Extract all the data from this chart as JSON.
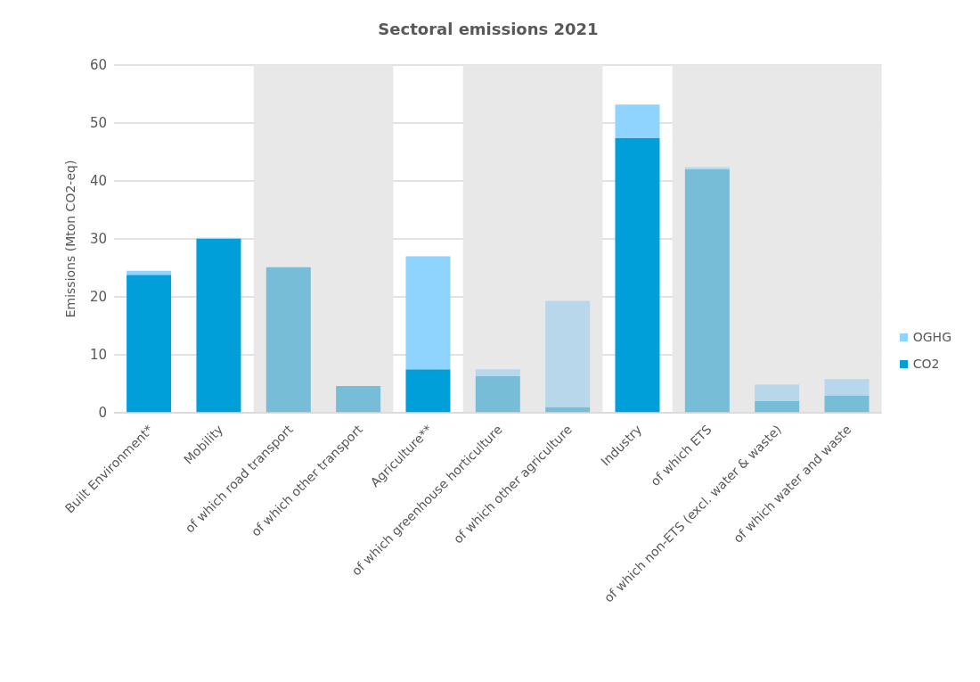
{
  "chart_data": {
    "type": "bar",
    "title": "Sectoral emissions 2021",
    "ylabel": "Emissions (Mton CO2-eq)",
    "categories": [
      "Built Environment*",
      "Mobility",
      "of which road transport",
      "of which other transport",
      "Agriculture**",
      "of which greenhouse horticulture",
      "of which other agriculture",
      "Industry",
      "of which ETS",
      "of which non-ETS (excl. water & waste)",
      "of which water and waste"
    ],
    "stacked": true,
    "series": [
      {
        "name": "CO2",
        "color": "#009fda",
        "colors": [
          "#009fda",
          "#009fda",
          "#78bdd8",
          "#78bdd8",
          "#009fda",
          "#78bdd8",
          "#78bdd8",
          "#009fda",
          "#78bdd8",
          "#78bdd8",
          "#78bdd8"
        ],
        "values": [
          23.8,
          30.0,
          25.1,
          4.6,
          7.5,
          6.3,
          1.0,
          47.4,
          42.0,
          2.0,
          3.0
        ]
      },
      {
        "name": "OGHG",
        "color": "#8fd3ff",
        "colors": [
          "#8fd3ff",
          "#8fd3ff",
          "#b8d7ea",
          "#b8d7ea",
          "#8fd3ff",
          "#b8d7ea",
          "#b8d7ea",
          "#8fd3ff",
          "#b8d7ea",
          "#b8d7ea",
          "#b8d7ea"
        ],
        "values": [
          0.7,
          0.2,
          0.0,
          0.0,
          19.5,
          1.2,
          18.3,
          5.8,
          0.4,
          2.9,
          2.8
        ]
      }
    ],
    "bands": [
      {
        "axis": "x",
        "from": "of which road transport",
        "to": "of which other transport",
        "color": "#e8e8e8"
      },
      {
        "axis": "x",
        "from": "of which greenhouse horticulture",
        "to": "of which other agriculture",
        "color": "#e8e8e8"
      },
      {
        "axis": "x",
        "from": "of which ETS",
        "to": "of which water and waste",
        "color": "#e8e8e8"
      }
    ],
    "ylim": [
      0,
      60
    ],
    "yticks": [
      0,
      10,
      20,
      30,
      40,
      50,
      60
    ],
    "grid": "y",
    "legend": "right"
  }
}
